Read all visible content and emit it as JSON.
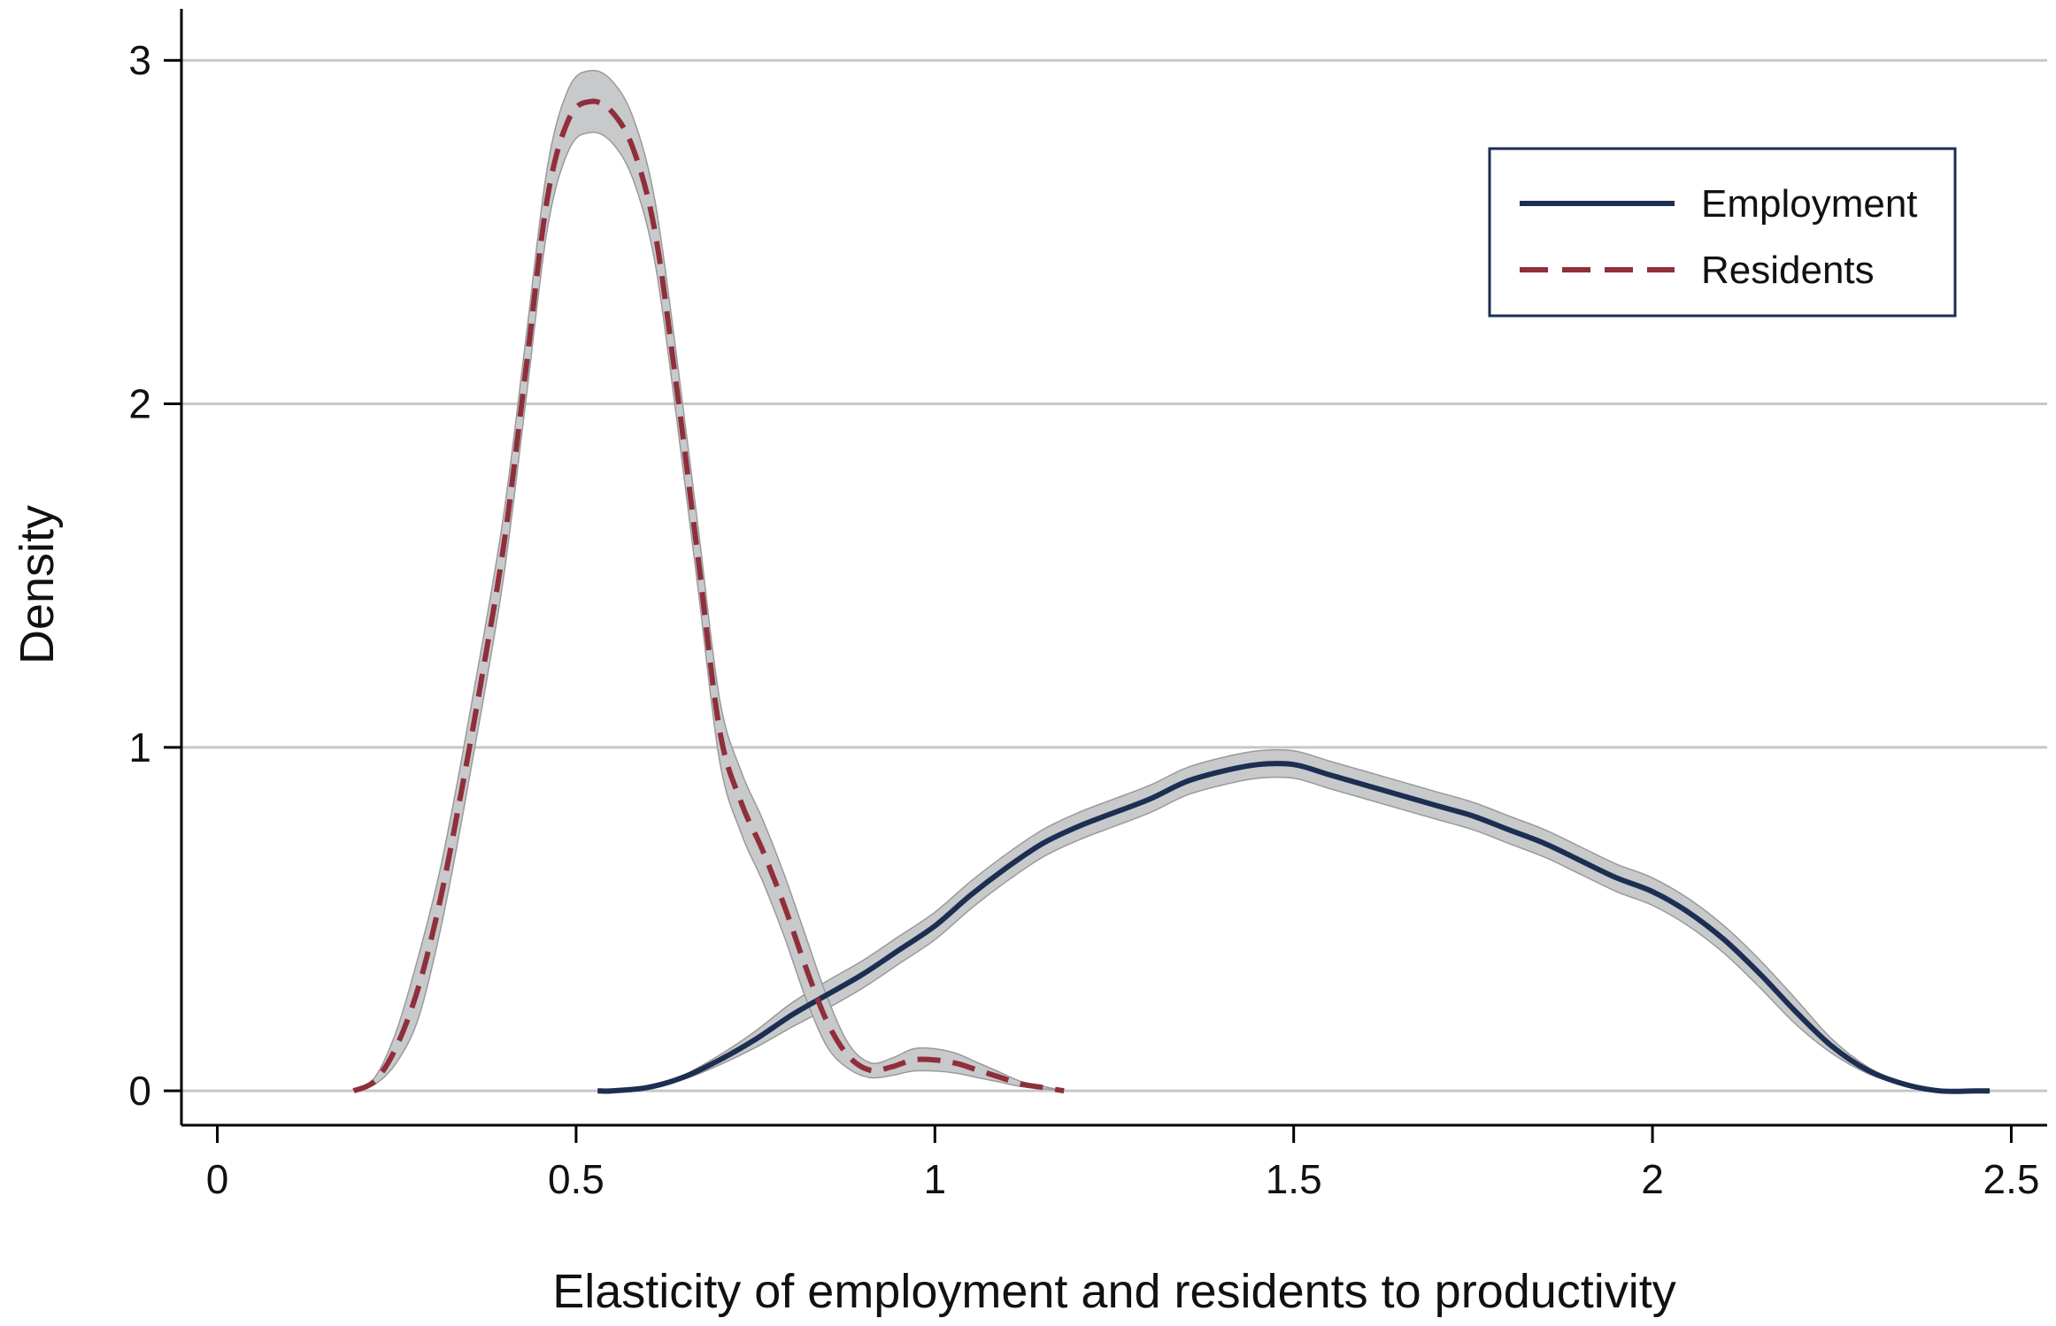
{
  "chart_data": {
    "type": "line",
    "title": "",
    "xlabel": "Elasticity of employment and residents to productivity",
    "ylabel": "Density",
    "xlim": [
      -0.05,
      2.55
    ],
    "ylim": [
      -0.1,
      3.15
    ],
    "xticks": [
      0,
      0.5,
      1,
      1.5,
      2,
      2.5
    ],
    "xtick_labels": [
      "0",
      "0.5",
      "1",
      "1.5",
      "2",
      "2.5"
    ],
    "yticks": [
      0,
      1,
      2,
      3
    ],
    "ytick_labels": [
      "0",
      "1",
      "2",
      "3"
    ],
    "grid": "horizontal",
    "legend_position": "top-right",
    "confidence_band_color": "#c8c9cb",
    "series": [
      {
        "name": "Employment",
        "color": "#1c2e52",
        "style": "solid",
        "band_halfwidth": 0.04,
        "x": [
          0.53,
          0.55,
          0.6,
          0.65,
          0.7,
          0.75,
          0.8,
          0.85,
          0.9,
          0.95,
          1.0,
          1.05,
          1.1,
          1.15,
          1.2,
          1.25,
          1.3,
          1.35,
          1.4,
          1.45,
          1.5,
          1.55,
          1.6,
          1.65,
          1.7,
          1.75,
          1.8,
          1.85,
          1.9,
          1.95,
          2.0,
          2.05,
          2.1,
          2.15,
          2.2,
          2.25,
          2.3,
          2.35,
          2.4,
          2.45,
          2.47
        ],
        "y": [
          0.0,
          0.0,
          0.01,
          0.04,
          0.09,
          0.15,
          0.22,
          0.28,
          0.34,
          0.41,
          0.48,
          0.57,
          0.65,
          0.72,
          0.77,
          0.81,
          0.85,
          0.9,
          0.93,
          0.95,
          0.95,
          0.92,
          0.89,
          0.86,
          0.83,
          0.8,
          0.76,
          0.72,
          0.67,
          0.62,
          0.58,
          0.52,
          0.44,
          0.34,
          0.23,
          0.13,
          0.06,
          0.02,
          0.0,
          0.0,
          0.0
        ]
      },
      {
        "name": "Residents",
        "color": "#8f2f3b",
        "style": "dashed",
        "band_halfwidth": 0.09,
        "x": [
          0.19,
          0.22,
          0.25,
          0.28,
          0.31,
          0.34,
          0.37,
          0.4,
          0.43,
          0.46,
          0.49,
          0.52,
          0.55,
          0.58,
          0.61,
          0.64,
          0.67,
          0.7,
          0.73,
          0.76,
          0.79,
          0.82,
          0.85,
          0.88,
          0.91,
          0.94,
          0.97,
          1.0,
          1.03,
          1.06,
          1.09,
          1.12,
          1.15,
          1.18
        ],
        "y": [
          0.0,
          0.03,
          0.13,
          0.3,
          0.55,
          0.87,
          1.22,
          1.6,
          2.1,
          2.6,
          2.83,
          2.88,
          2.85,
          2.74,
          2.5,
          2.05,
          1.55,
          1.05,
          0.84,
          0.7,
          0.54,
          0.36,
          0.2,
          0.1,
          0.06,
          0.07,
          0.09,
          0.09,
          0.08,
          0.06,
          0.04,
          0.02,
          0.01,
          0.0
        ]
      }
    ]
  }
}
